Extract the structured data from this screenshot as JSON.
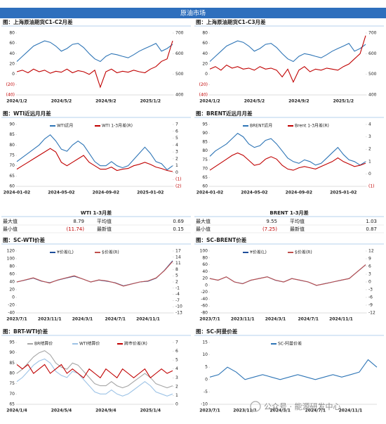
{
  "header": {
    "title": "原油市场"
  },
  "watermark": "公众号 · 能源研发中心",
  "chart_data": [
    {
      "type": "line",
      "title": "图：上海原油期货C1-C2月差",
      "categories": [
        "2024/1/2",
        null,
        null,
        null,
        null,
        null,
        null,
        null,
        "2024/5/2",
        null,
        null,
        null,
        null,
        null,
        null,
        null,
        "2024/9/2",
        null,
        null,
        null,
        null,
        null,
        null,
        null,
        "2025/1/2",
        null,
        null,
        null,
        null
      ],
      "series": [
        {
          "color": "#2e75b6",
          "axis": "y2",
          "values": [
            562,
            587,
            612,
            637,
            650,
            662,
            655,
            637,
            612,
            625,
            645,
            650,
            630,
            600,
            575,
            562,
            587,
            600,
            595,
            587,
            580,
            595,
            612,
            625,
            637,
            650,
            612,
            625,
            645
          ]
        },
        {
          "color": "#c00000",
          "values": [
            5,
            8,
            3,
            10,
            5,
            8,
            2,
            6,
            4,
            10,
            3,
            7,
            5,
            0,
            8,
            -25,
            5,
            10,
            3,
            6,
            4,
            8,
            5,
            3,
            10,
            15,
            25,
            30,
            65
          ]
        }
      ],
      "ylim": [
        -40,
        80
      ],
      "yticks": [
        80,
        60,
        40,
        20,
        0,
        {
          "value": -20,
          "label": "(20)"
        },
        {
          "value": -40,
          "label": "(40)"
        }
      ],
      "y2lim": [
        400,
        700
      ],
      "y2ticks": [
        700,
        600,
        500,
        400
      ]
    },
    {
      "type": "line",
      "title": "图：上海原油期货C1-C3月差",
      "categories": [
        "2024/1/2",
        null,
        null,
        null,
        null,
        null,
        null,
        null,
        "2024/5/2",
        null,
        null,
        null,
        null,
        null,
        null,
        null,
        "2024/9/2",
        null,
        null,
        null,
        null,
        null,
        null,
        null,
        "2025/1/2",
        null,
        null,
        null,
        null
      ],
      "series": [
        {
          "color": "#2e75b6",
          "axis": "y2",
          "values": [
            562,
            587,
            612,
            637,
            650,
            662,
            655,
            637,
            612,
            625,
            645,
            650,
            630,
            600,
            575,
            562,
            587,
            600,
            595,
            587,
            580,
            595,
            612,
            625,
            637,
            650,
            612,
            625,
            645
          ]
        },
        {
          "color": "#c00000",
          "values": [
            10,
            15,
            8,
            18,
            12,
            15,
            10,
            12,
            8,
            15,
            10,
            12,
            8,
            -5,
            10,
            -15,
            8,
            15,
            5,
            10,
            8,
            12,
            10,
            8,
            15,
            20,
            30,
            40,
            75
          ]
        }
      ],
      "ylim": [
        -40,
        80
      ],
      "yticks": [
        80,
        60,
        40,
        20,
        0,
        {
          "value": -20,
          "label": "(20)"
        },
        {
          "value": -40,
          "label": "(40)"
        }
      ],
      "y2lim": [
        400,
        700
      ],
      "y2ticks": [
        700,
        600,
        500,
        400
      ]
    },
    {
      "type": "line",
      "title": "图：WTI近远月月差",
      "categories": [
        "2024-01-02",
        null,
        null,
        null,
        null,
        null,
        null,
        null,
        "2024-05-02",
        null,
        null,
        null,
        null,
        null,
        null,
        null,
        "2024-09-02",
        null,
        null,
        null,
        null,
        null,
        null,
        null,
        "2025-01-02",
        null,
        null,
        null,
        null
      ],
      "series": [
        {
          "name": "WTI近月",
          "color": "#2e75b6",
          "values": [
            72,
            74,
            76,
            78,
            80,
            83,
            85,
            82,
            78,
            77,
            80,
            82,
            80,
            76,
            72,
            70,
            70,
            72,
            70,
            69,
            70,
            73,
            76,
            79,
            76,
            72,
            71,
            68,
            70
          ]
        },
        {
          "name": "WTI 1-3月差(R)",
          "color": "#c00000",
          "axis": "y2",
          "values": [
            0.5,
            1,
            1.5,
            2,
            2.5,
            3,
            3.5,
            3,
            1.5,
            1,
            1.5,
            2,
            2.5,
            1.5,
            1,
            0.5,
            0.5,
            0.8,
            0.3,
            0.5,
            0.6,
            1,
            1.2,
            1.5,
            1.2,
            0.8,
            0.6,
            0.3,
            0.15
          ]
        }
      ],
      "ylim": [
        60,
        90
      ],
      "yticks": [
        90,
        85,
        80,
        75,
        70,
        65,
        60
      ],
      "y2lim": [
        -2,
        7
      ],
      "y2ticks": [
        7,
        6,
        5,
        4,
        3,
        2,
        1,
        0,
        {
          "value": -1,
          "label": "(1)"
        },
        {
          "value": -2,
          "label": "(2)"
        }
      ]
    },
    {
      "type": "line",
      "title": "图：BRENT近远月月差",
      "categories": [
        "2024-01-02",
        null,
        null,
        null,
        null,
        null,
        null,
        null,
        "2024-05-02",
        null,
        null,
        null,
        null,
        null,
        null,
        null,
        "2024-09-02",
        null,
        null,
        null,
        null,
        null,
        null,
        null,
        "2025-01-02",
        null,
        null,
        null,
        null
      ],
      "series": [
        {
          "name": "BRENT近月",
          "color": "#2e75b6",
          "values": [
            77,
            80,
            82,
            84,
            87,
            90,
            88,
            84,
            82,
            83,
            86,
            87,
            84,
            80,
            76,
            74,
            73,
            75,
            74,
            72,
            73,
            76,
            79,
            82,
            78,
            75,
            74,
            72,
            74
          ]
        },
        {
          "name": "Brent 1-3月差(R)",
          "color": "#c00000",
          "axis": "y2",
          "values": [
            0.3,
            0.6,
            0.9,
            1.2,
            1.5,
            1.7,
            1.5,
            1.1,
            0.7,
            0.8,
            1.2,
            1.4,
            1.2,
            0.7,
            0.4,
            0.3,
            0.5,
            0.6,
            0.5,
            0.4,
            0.6,
            0.8,
            1,
            1.3,
            1,
            0.8,
            0.6,
            0.7,
            0.87
          ]
        }
      ],
      "ylim": [
        60,
        95
      ],
      "yticks": [
        95,
        90,
        85,
        80,
        75,
        70,
        65,
        60
      ],
      "y2lim": [
        -1,
        4
      ],
      "y2ticks": [
        4,
        3,
        2,
        1,
        0,
        {
          "value": -1,
          "label": "(1)"
        }
      ]
    },
    {
      "type": "line",
      "title": "图：SC-WTI价差",
      "categories": [
        "2023/7/1",
        null,
        null,
        null,
        "2023/11/1",
        null,
        null,
        null,
        "2024/3/1",
        null,
        null,
        null,
        "2024/7/1",
        null,
        null,
        null,
        "2024/11/1",
        null,
        null,
        null
      ],
      "series": [
        {
          "name": "¥价差(L)",
          "color": "#1f4e9a",
          "values": [
            40,
            45,
            50,
            42,
            38,
            45,
            50,
            55,
            48,
            40,
            45,
            42,
            38,
            30,
            35,
            40,
            42,
            50,
            70,
            95
          ]
        },
        {
          "name": "$价差(R)",
          "color": "#c0504d",
          "axis": "y2",
          "values": [
            2,
            3,
            4,
            2.5,
            1.5,
            3,
            4,
            5,
            3.5,
            2,
            3,
            2.5,
            1.5,
            0,
            1,
            2,
            2.5,
            4,
            7.5,
            12
          ]
        }
      ],
      "ylim": [
        -40,
        120
      ],
      "yticks": [
        120,
        100,
        80,
        60,
        40,
        20,
        0,
        -20,
        -40
      ],
      "y2lim": [
        -13,
        17
      ],
      "y2ticks": [
        17,
        14,
        11,
        8,
        5,
        2,
        -1,
        -4,
        -7,
        -10,
        -13
      ]
    },
    {
      "type": "line",
      "title": "图：SC-BRENT价差",
      "categories": [
        "2023/7/1",
        null,
        null,
        null,
        "2023/11/1",
        null,
        null,
        null,
        "2024/3/1",
        null,
        null,
        null,
        "2024/7/1",
        null,
        null,
        null,
        "2024/11/1",
        null,
        null,
        null
      ],
      "series": [
        {
          "name": "¥价差(L)",
          "color": "#1f4e9a",
          "values": [
            20,
            15,
            25,
            10,
            5,
            15,
            20,
            25,
            15,
            10,
            20,
            15,
            10,
            0,
            5,
            10,
            15,
            20,
            40,
            60
          ]
        },
        {
          "name": "$价差(R)",
          "color": "#c0504d",
          "axis": "y2",
          "values": [
            1.3,
            0.7,
            2,
            0,
            -0.7,
            0.7,
            1.3,
            2,
            0.7,
            0,
            1.3,
            0.7,
            0,
            -1.3,
            -0.7,
            0,
            0.7,
            1.3,
            4,
            6.7
          ]
        }
      ],
      "ylim": [
        -80,
        100
      ],
      "yticks": [
        100,
        80,
        60,
        40,
        20,
        0,
        -20,
        -40,
        -60,
        -80
      ],
      "y2lim": [
        -12,
        12
      ],
      "y2ticks": [
        12,
        9,
        6,
        3,
        0,
        -3,
        -6,
        -9,
        -12
      ]
    },
    {
      "type": "line",
      "title": "图：BRT-WTI价差",
      "categories": [
        "2024/1/4",
        null,
        null,
        null,
        null,
        null,
        null,
        null,
        "2024/5/4",
        null,
        null,
        null,
        null,
        null,
        null,
        null,
        "2024/9/4",
        null,
        null,
        null,
        null,
        null,
        null,
        null,
        "2025/1/4",
        null,
        null,
        null,
        null
      ],
      "series": [
        {
          "name": "BR结算价",
          "color": "#a6a6a6",
          "values": [
            80,
            82,
            85,
            88,
            90,
            91,
            89,
            85,
            83,
            82,
            85,
            84,
            81,
            78,
            75,
            74,
            74,
            76,
            74,
            73,
            74,
            76,
            78,
            80,
            78,
            75,
            74,
            73,
            74
          ]
        },
        {
          "name": "WTI结算价",
          "color": "#9dc3e6",
          "values": [
            76,
            78,
            81,
            84,
            86,
            87,
            85,
            81,
            79,
            78,
            81,
            80,
            77,
            74,
            71,
            70,
            70,
            72,
            70,
            69,
            70,
            72,
            74,
            76,
            74,
            71,
            70,
            69,
            70
          ]
        },
        {
          "name": "跨市价差(R)",
          "color": "#c00000",
          "axis": "y2",
          "values": [
            4.5,
            4,
            4.5,
            3.5,
            4,
            4.5,
            3.5,
            4,
            4.5,
            3.5,
            4,
            3.5,
            3,
            4,
            3.5,
            3,
            4,
            3.5,
            3,
            4,
            3.5,
            3,
            3.5,
            4,
            3,
            3.5,
            4,
            3.5,
            3.8
          ]
        }
      ],
      "ylim": [
        65,
        95
      ],
      "yticks": [
        95,
        90,
        85,
        80,
        75,
        70,
        65
      ],
      "y2lim": [
        0,
        7
      ],
      "y2ticks": [
        7,
        6,
        5,
        4,
        3,
        2,
        1,
        0
      ]
    },
    {
      "type": "line",
      "title": "图：SC-阿曼价差",
      "categories": [
        "2023/7/1",
        null,
        null,
        null,
        "2023/11/1",
        null,
        null,
        null,
        "2024/3/1",
        null,
        null,
        null,
        "2024/7/1",
        null,
        null,
        null,
        "2024/11/1",
        null,
        null,
        null
      ],
      "series": [
        {
          "name": "SC-阿曼价差",
          "color": "#2e75b6",
          "values": [
            1,
            2,
            5,
            3,
            0,
            1,
            2,
            1,
            0,
            1,
            2,
            1,
            0,
            1,
            2,
            1,
            2,
            3,
            8,
            5
          ]
        }
      ],
      "ylim": [
        -10,
        15
      ],
      "yticks": [
        15,
        10,
        5,
        0,
        -5,
        -10
      ]
    }
  ],
  "stats": [
    {
      "title": "WTI 1-3月差",
      "rows": [
        [
          "最大值",
          "8.79",
          "平均值",
          "0.69"
        ],
        [
          "最小值",
          "(11.74)",
          "最新值",
          "0.15"
        ]
      ]
    },
    {
      "title": "BRENT 1-3月差",
      "rows": [
        [
          "最大值",
          "9.55",
          "平均值",
          "1.03"
        ],
        [
          "最小值",
          "(7.25)",
          "最新值",
          "0.87"
        ]
      ]
    }
  ]
}
